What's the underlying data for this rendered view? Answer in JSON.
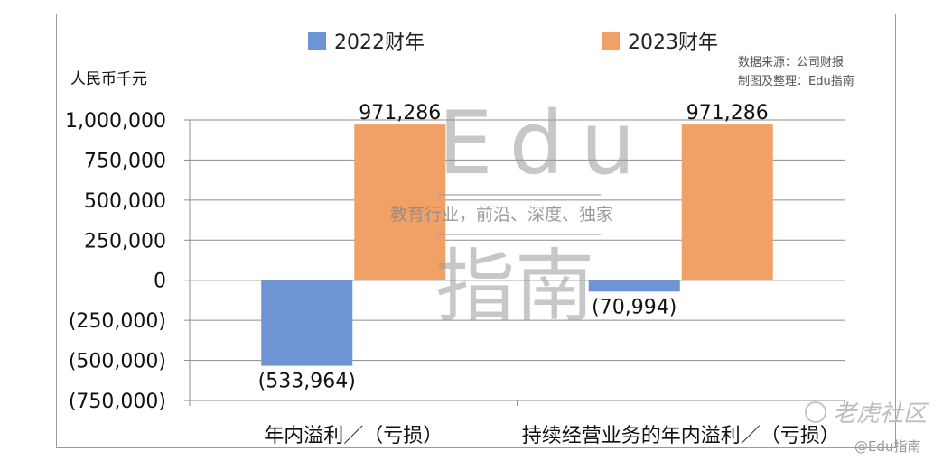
{
  "chart_data": {
    "type": "bar",
    "categories": [
      "年内溢利／（亏损）",
      "持续经营业务的年内溢利／（亏损）"
    ],
    "series": [
      {
        "name": "2022财年",
        "color": "#6f94d6",
        "values": [
          -533964,
          -70994
        ],
        "labels": [
          "(533,964)",
          "(70,994)"
        ]
      },
      {
        "name": "2023财年",
        "color": "#f1a166",
        "values": [
          971286,
          971286
        ],
        "labels": [
          "971,286",
          "971,286"
        ]
      }
    ],
    "ylabel": "人民币千元",
    "ylim": [
      -750000,
      1000000
    ],
    "yticks": [
      1000000,
      750000,
      500000,
      250000,
      0,
      -250000,
      -500000,
      -750000
    ],
    "ytick_labels": [
      "1,000,000",
      "750,000",
      "500,000",
      "250,000",
      "0",
      "(250,000)",
      "(500,000)",
      "(750,000)"
    ],
    "grid": true,
    "legend_position": "top-center"
  },
  "source_note": [
    "数据来源：公司财报",
    "制图及整理：Edu指南"
  ],
  "watermark": {
    "brand": "Edu",
    "subtitle": "教育行业，前沿、深度、独家",
    "name": "指南"
  },
  "corner_logo": {
    "main": "老虎社区",
    "sub": "@Edu指南"
  }
}
